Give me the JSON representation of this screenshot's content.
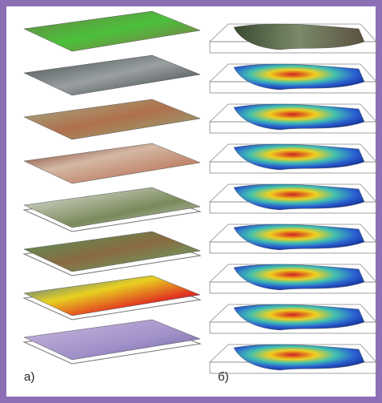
{
  "panels": {
    "left": {
      "label": "a)"
    },
    "right": {
      "label": "б)"
    }
  }
}
